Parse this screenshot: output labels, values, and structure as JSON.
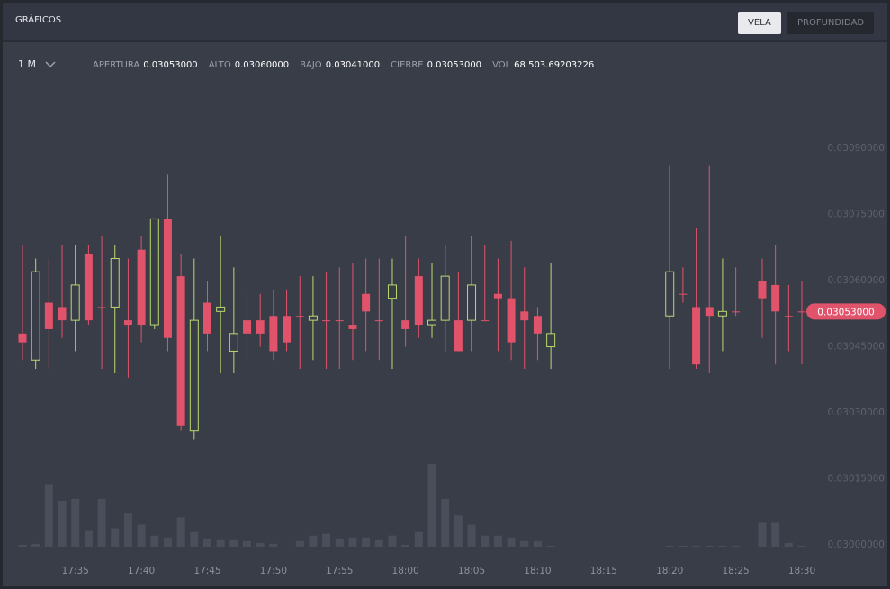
{
  "header": {
    "title": "GRÁFICOS",
    "buttons": [
      "VELA",
      "PROFUNDIDAD"
    ]
  },
  "toolbar": {
    "interval": "1 M",
    "stats": [
      {
        "label": "APERTURA",
        "value": "0.03053000"
      },
      {
        "label": "ALTO",
        "value": "0.03060000"
      },
      {
        "label": "BAJO",
        "value": "0.03041000"
      },
      {
        "label": "CIERRE",
        "value": "0.03053000"
      },
      {
        "label": "VOL",
        "value": "68 503.69203226"
      }
    ]
  },
  "chart_data": {
    "type": "candlestick",
    "categories": [
      null,
      null,
      null,
      null,
      "17:35",
      null,
      null,
      null,
      null,
      "17:40",
      null,
      null,
      null,
      null,
      "17:45",
      null,
      null,
      null,
      null,
      "17:50",
      null,
      null,
      null,
      null,
      "17:55",
      null,
      null,
      null,
      null,
      "18:00",
      null,
      null,
      null,
      null,
      "18:05",
      null,
      null,
      null,
      null,
      "18:10",
      null,
      null,
      null,
      null,
      "18:15",
      null,
      null,
      null,
      null,
      "18:20",
      null,
      null,
      null,
      null,
      "18:25",
      null,
      null,
      null,
      null,
      "18:30"
    ],
    "open": [
      0.03048,
      0.03042,
      0.03055,
      0.03054,
      0.03051,
      0.03066,
      0.03054,
      0.03054,
      0.03051,
      0.03067,
      0.0305,
      0.03074,
      0.03061,
      0.03026,
      0.03055,
      0.03053,
      0.03044,
      0.03051,
      0.03051,
      0.03052,
      0.03052,
      0.03052,
      0.03051,
      0.03051,
      0.03051,
      0.0305,
      0.03057,
      0.03051,
      0.03056,
      0.03051,
      0.03061,
      0.0305,
      0.03051,
      0.03051,
      0.03051,
      0.03051,
      0.03057,
      0.03056,
      0.03053,
      0.03052,
      0.03045,
      null,
      null,
      null,
      null,
      null,
      null,
      null,
      null,
      0.03052,
      0.03057,
      0.03054,
      0.03054,
      0.03052,
      0.03053,
      null,
      0.0306,
      0.03059,
      0.03052,
      0.03053
    ],
    "high": [
      0.03068,
      0.03065,
      0.03065,
      0.03068,
      0.03068,
      0.03068,
      0.0307,
      0.03068,
      0.03065,
      0.0307,
      0.03074,
      0.03084,
      0.03066,
      0.03065,
      0.0306,
      0.0307,
      0.03063,
      0.03057,
      0.03057,
      0.03058,
      0.03058,
      0.03061,
      0.03061,
      0.03062,
      0.03063,
      0.03064,
      0.03065,
      0.03065,
      0.03065,
      0.0307,
      0.03065,
      0.03064,
      0.03068,
      0.03062,
      0.0307,
      0.03068,
      0.03065,
      0.03069,
      0.03063,
      0.03054,
      0.03064,
      null,
      null,
      null,
      null,
      null,
      null,
      null,
      null,
      0.03086,
      0.03063,
      0.03072,
      0.03086,
      0.03065,
      0.03063,
      null,
      0.03065,
      0.03068,
      0.03059,
      0.0306
    ],
    "low": [
      0.03042,
      0.0304,
      0.0304,
      0.03047,
      0.03044,
      0.0305,
      0.0304,
      0.03039,
      0.03038,
      0.03046,
      0.03049,
      0.03044,
      0.03026,
      0.03024,
      0.03044,
      0.03039,
      0.03039,
      0.03042,
      0.03045,
      0.03042,
      0.03044,
      0.0304,
      0.03042,
      0.0304,
      0.0304,
      0.03042,
      0.03044,
      0.03042,
      0.0304,
      0.03045,
      0.03047,
      0.03047,
      0.03044,
      0.03044,
      0.03044,
      0.03051,
      0.03044,
      0.03042,
      0.0304,
      0.03042,
      0.0304,
      null,
      null,
      null,
      null,
      null,
      null,
      null,
      null,
      0.0304,
      0.03055,
      0.0304,
      0.03039,
      0.03044,
      0.03052,
      null,
      0.03047,
      0.03041,
      0.03044,
      0.03041
    ],
    "close": [
      0.03046,
      0.03062,
      0.03049,
      0.03051,
      0.03059,
      0.03051,
      0.03054,
      0.03065,
      0.0305,
      0.0305,
      0.03074,
      0.03047,
      0.03027,
      0.03051,
      0.03048,
      0.03054,
      0.03048,
      0.03048,
      0.03048,
      0.03044,
      0.03046,
      0.03052,
      0.03052,
      0.03051,
      0.03051,
      0.03049,
      0.03053,
      0.03051,
      0.03059,
      0.03049,
      0.0305,
      0.03051,
      0.03061,
      0.03044,
      0.03059,
      0.03051,
      0.03056,
      0.03046,
      0.03051,
      0.03048,
      0.03048,
      null,
      null,
      null,
      null,
      null,
      null,
      null,
      null,
      0.03062,
      0.03057,
      0.03041,
      0.03052,
      0.03053,
      0.03053,
      null,
      0.03056,
      0.03053,
      0.03052,
      0.03053
    ],
    "volume": [
      2,
      3,
      68,
      50,
      52,
      18,
      52,
      20,
      36,
      24,
      12,
      10,
      32,
      16,
      9,
      8,
      8,
      6,
      4,
      3,
      0,
      6,
      12,
      14,
      9,
      10,
      10,
      8,
      12,
      2,
      16,
      90,
      52,
      34,
      24,
      12,
      12,
      10,
      6,
      6,
      1,
      null,
      null,
      null,
      null,
      null,
      null,
      null,
      null,
      1,
      1,
      1,
      1,
      1,
      1,
      null,
      26,
      26,
      4,
      1
    ],
    "up_color": "#b9d96e",
    "down_color": "#e0536b",
    "volume_color": "#4a4e5a",
    "ylim": [
      0.029986,
      0.031006
    ],
    "yticks": [
      {
        "value": 0.03,
        "label": "0.03000000"
      },
      {
        "value": 0.03015,
        "label": "0.03015000"
      },
      {
        "value": 0.0303,
        "label": "0.03030000"
      },
      {
        "value": 0.03045,
        "label": "0.03045000"
      },
      {
        "value": 0.0306,
        "label": "0.03060000"
      },
      {
        "value": 0.03075,
        "label": "0.03075000"
      },
      {
        "value": 0.0309,
        "label": "0.03090000"
      }
    ],
    "last_price": {
      "value": 0.03053,
      "label": "0.03053000"
    }
  }
}
